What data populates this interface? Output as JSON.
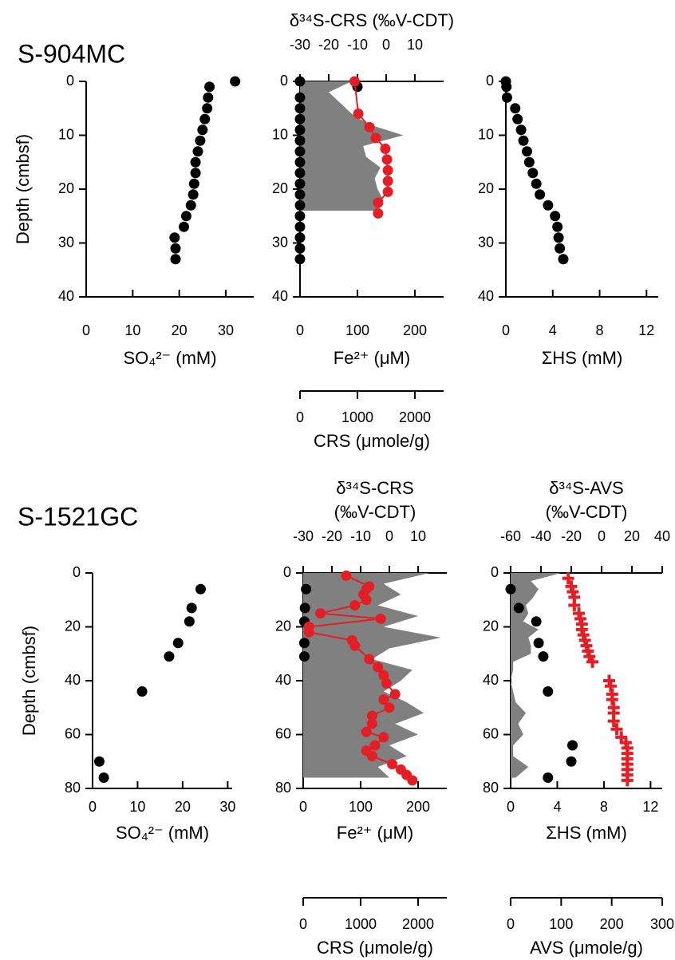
{
  "chart_data": [
    {
      "type": "profile",
      "title": "S-904MC",
      "ylabel": "Depth (cmbsf)",
      "y_inverted": true,
      "ylim": [
        0,
        40
      ],
      "yticks": [
        0,
        10,
        20,
        30,
        40
      ],
      "xlabel": "SO₄²⁻ (mM)",
      "xlim": [
        0,
        36
      ],
      "xticks": [
        0,
        10,
        20,
        30
      ],
      "series": [
        {
          "axis": "x",
          "style": "dots",
          "color": "#000000",
          "depth": [
            0,
            1,
            3,
            5,
            7,
            9,
            11,
            13,
            15,
            17,
            19,
            21,
            23,
            25,
            27,
            29,
            31,
            33
          ],
          "values": [
            32,
            26.5,
            26.2,
            26,
            25.5,
            25,
            24.5,
            24,
            23.5,
            23.5,
            23.2,
            23,
            22.5,
            21.5,
            21,
            19,
            19.2,
            19.2
          ]
        }
      ]
    },
    {
      "type": "profile",
      "y_inverted": true,
      "ylim": [
        0,
        40
      ],
      "yticks": [
        0,
        10,
        20,
        30,
        40
      ],
      "xlabel": "Fe²⁺ (μM)",
      "xlim": [
        0,
        250
      ],
      "xticks": [
        0,
        100,
        200
      ],
      "x2label": [
        "δ³⁴S-CRS (‰V-CDT)"
      ],
      "x2lim": [
        -30,
        20
      ],
      "x2ticks": [
        -30,
        -20,
        -10,
        0,
        10
      ],
      "x2color": "#e31e24",
      "x3label": "CRS (μmole/g)",
      "x3lim": [
        0,
        2500
      ],
      "x3ticks": [
        0,
        1000,
        2000
      ],
      "x3color": "#666666",
      "series": [
        {
          "axis": "x3",
          "style": "area",
          "color": "#808080",
          "depth": [
            0,
            2,
            4,
            6,
            8,
            10,
            12,
            14,
            16,
            18,
            20,
            22,
            24
          ],
          "values": [
            900,
            500,
            700,
            900,
            1200,
            1800,
            1100,
            1150,
            1400,
            1300,
            1350,
            1450,
            1350
          ]
        },
        {
          "axis": "x",
          "style": "dots",
          "color": "#000000",
          "depth": [
            0,
            1,
            3,
            5,
            7,
            9,
            11,
            13,
            15,
            17,
            19,
            21,
            23,
            25,
            27,
            29,
            31,
            33
          ],
          "values": [
            0,
            100,
            0,
            0,
            0,
            0,
            0,
            0,
            0,
            0,
            0,
            0,
            0,
            0,
            0,
            0,
            0,
            0
          ]
        },
        {
          "axis": "x2",
          "style": "line-dots",
          "color": "#e31e24",
          "depth": [
            0,
            6,
            8.5,
            10.5,
            12.5,
            14.5,
            16.5,
            18.5,
            20.5,
            22.5,
            24.5
          ],
          "values": [
            -11,
            -9.7,
            -5.8,
            -3.6,
            -0.3,
            0.3,
            0.6,
            0.6,
            0.6,
            -2.8,
            -2.8
          ]
        }
      ]
    },
    {
      "type": "profile",
      "y_inverted": true,
      "ylim": [
        0,
        40
      ],
      "yticks": [
        0,
        10,
        20,
        30,
        40
      ],
      "xlabel": "ΣHS (mM)",
      "xlim": [
        0,
        13
      ],
      "xticks": [
        0,
        4,
        8,
        12
      ],
      "series": [
        {
          "axis": "x",
          "style": "dots",
          "color": "#000000",
          "depth": [
            0,
            1,
            3,
            5,
            7,
            9,
            11,
            13,
            15,
            17,
            19,
            21,
            23,
            25,
            27,
            29,
            31,
            33
          ],
          "values": [
            0,
            0.05,
            0.1,
            0.8,
            1,
            1.3,
            1.5,
            1.8,
            2,
            2.3,
            2.6,
            2.9,
            3.6,
            4.2,
            4.4,
            4.5,
            4.6,
            4.9
          ]
        }
      ]
    },
    {
      "type": "profile",
      "title": "S-1521GC",
      "ylabel": "Depth (cmbsf)",
      "y_inverted": true,
      "ylim": [
        0,
        80
      ],
      "yticks": [
        0,
        20,
        40,
        60,
        80
      ],
      "xlabel": "SO₄²⁻ (mM)",
      "xlim": [
        0,
        31
      ],
      "xticks": [
        0,
        10,
        20,
        30
      ],
      "series": [
        {
          "axis": "x",
          "style": "dots",
          "color": "#000000",
          "depth": [
            6,
            13,
            18,
            26,
            31,
            44,
            70,
            76
          ],
          "values": [
            24,
            22,
            21.5,
            19,
            17,
            11,
            1.5,
            2.5
          ]
        }
      ]
    },
    {
      "type": "profile",
      "y_inverted": true,
      "ylim": [
        0,
        80
      ],
      "yticks": [
        0,
        20,
        40,
        60,
        80
      ],
      "xlabel": "Fe²⁺ (μM)",
      "xlim": [
        0,
        250
      ],
      "xticks": [
        0,
        100,
        200
      ],
      "x2label": [
        "δ³⁴S-CRS",
        "(‰V-CDT)"
      ],
      "x2lim": [
        -30,
        20
      ],
      "x2ticks": [
        -30,
        -20,
        -10,
        0,
        10
      ],
      "x2color": "#e31e24",
      "x3label": "CRS (μmole/g)",
      "x3lim": [
        0,
        2500
      ],
      "x3ticks": [
        0,
        1000,
        2000
      ],
      "x3color": "#666666",
      "series": [
        {
          "axis": "x3",
          "style": "area",
          "color": "#808080",
          "depth": [
            0,
            4,
            8,
            12,
            16,
            20,
            24,
            28,
            32,
            36,
            40,
            44,
            48,
            52,
            56,
            60,
            64,
            68,
            72,
            76
          ],
          "values": [
            2200,
            1400,
            1700,
            1300,
            2000,
            1400,
            2400,
            1500,
            1200,
            1900,
            1700,
            1400,
            1800,
            2100,
            1600,
            2000,
            1500,
            1800,
            1300,
            1500
          ]
        },
        {
          "axis": "x",
          "style": "dots",
          "color": "#000000",
          "depth": [
            6,
            13,
            18,
            26,
            31
          ],
          "values": [
            5,
            3,
            2,
            2,
            2
          ]
        },
        {
          "axis": "x2",
          "style": "line-dots",
          "color": "#e31e24",
          "depth": [
            1,
            5,
            6,
            8,
            10,
            12,
            15,
            17,
            20,
            22,
            25,
            27,
            32,
            35,
            38,
            41,
            45,
            47,
            50,
            53,
            56,
            59,
            61,
            64,
            66,
            68,
            71,
            73,
            75,
            77
          ],
          "values": [
            -15,
            -7,
            -8,
            -9,
            -8,
            -12,
            -24,
            -3,
            -28,
            -28,
            -13,
            -12,
            -7,
            -4,
            -2,
            -1,
            2,
            -2,
            0,
            -6,
            -6,
            -8,
            -2,
            -5,
            -8,
            -6,
            1,
            4,
            6,
            8
          ]
        }
      ]
    },
    {
      "type": "profile",
      "y_inverted": true,
      "ylim": [
        0,
        80
      ],
      "yticks": [
        0,
        20,
        40,
        60,
        80
      ],
      "xlabel": "ΣHS (mM)",
      "xlim": [
        0,
        13
      ],
      "xticks": [
        0,
        4,
        8,
        12
      ],
      "x2label": [
        "δ³⁴S-AVS",
        "(‰V-CDT)"
      ],
      "x2lim": [
        -60,
        40
      ],
      "x2ticks": [
        -60,
        -40,
        -20,
        0,
        20,
        40
      ],
      "x2color": "#e31e24",
      "x3label": "AVS (μmole/g)",
      "x3lim": [
        0,
        300
      ],
      "x3ticks": [
        0,
        100,
        200,
        300
      ],
      "x3color": "#666666",
      "series": [
        {
          "axis": "x3",
          "style": "area",
          "color": "#808080",
          "depth": [
            0,
            3,
            6,
            9,
            12,
            15,
            18,
            21,
            24,
            27,
            30,
            33,
            36,
            40,
            44,
            48,
            52,
            56,
            60,
            64,
            68,
            72,
            76
          ],
          "values": [
            100,
            40,
            55,
            45,
            30,
            35,
            25,
            55,
            35,
            40,
            40,
            5,
            5,
            0,
            5,
            10,
            30,
            15,
            25,
            5,
            5,
            35,
            10
          ]
        },
        {
          "axis": "x",
          "style": "dots",
          "color": "#000000",
          "depth": [
            6,
            13,
            18,
            26,
            31,
            44,
            64,
            70,
            76
          ],
          "values": [
            0,
            0.7,
            2.2,
            2.4,
            2.8,
            3.2,
            5.3,
            5.2,
            3.2
          ]
        },
        {
          "axis": "x2",
          "style": "plus",
          "color": "#e31e24",
          "depth": [
            2,
            5,
            7,
            9,
            12,
            15,
            17,
            19,
            21,
            23,
            25,
            27,
            29,
            31,
            33,
            40,
            42,
            45,
            47,
            50,
            52,
            55,
            58,
            61,
            63,
            65,
            67,
            69,
            71,
            73,
            75,
            77
          ],
          "values": [
            -22,
            -20,
            -19,
            -18,
            -18,
            -15,
            -14,
            -13,
            -13,
            -12,
            -11,
            -10,
            -9,
            -8,
            -6,
            5,
            6,
            7,
            7,
            8,
            8,
            8,
            10,
            13,
            16,
            17,
            17,
            17,
            17,
            17,
            17,
            17
          ]
        }
      ]
    }
  ]
}
